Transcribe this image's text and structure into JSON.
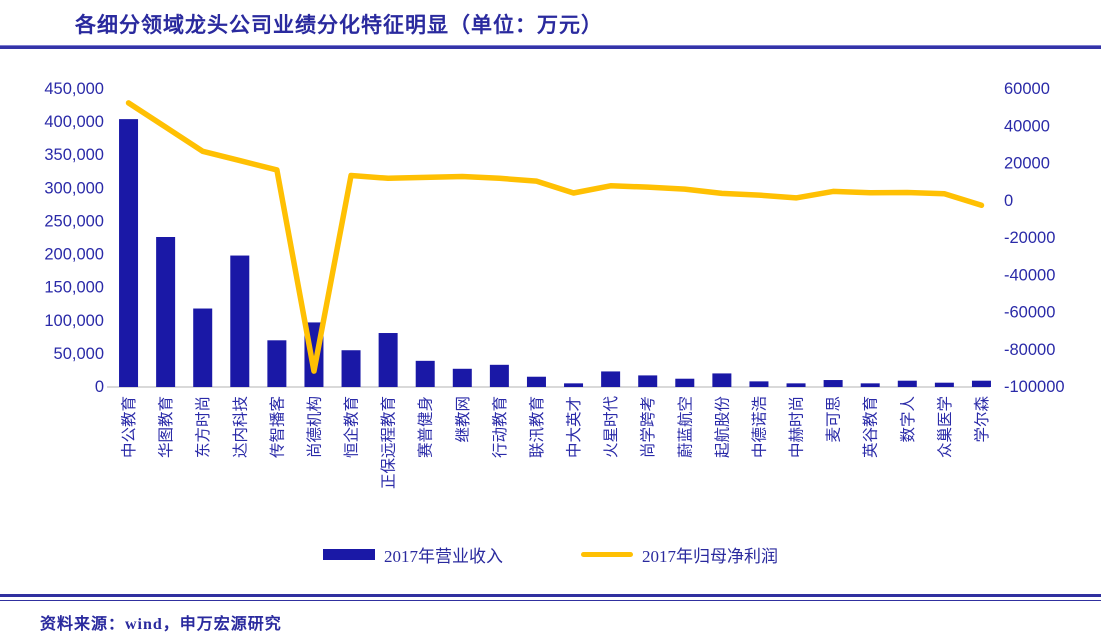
{
  "title": "各细分领域龙头公司业绩分化特征明显（单位：万元）",
  "source": "资料来源：wind，申万宏源研究",
  "legend": {
    "revenue_label": "2017年营业收入",
    "profit_label": "2017年归母净利润"
  },
  "colors": {
    "bar": "#1A18A6",
    "line": "#FFC003",
    "axis_text": "#2A2AA8",
    "baseline": "#D9D9D9",
    "rule": "#3434A8"
  },
  "chart_data": {
    "type": "bar",
    "subtype": "bar+line combo, dual axis",
    "title": "各细分领域龙头公司业绩分化特征明显（单位：万元）",
    "categories": [
      "中公教育",
      "华图教育",
      "东方时尚",
      "达内科技",
      "传智播客",
      "尚德机构",
      "恒企教育",
      "正保远程教育",
      "赛普健身",
      "继教网",
      "行动教育",
      "联汛教育",
      "中大英才",
      "火星时代",
      "尚学跨考",
      "蔚蓝航空",
      "起航股份",
      "中德诺浩",
      "中赫时尚",
      "麦可思",
      "英谷教育",
      "数字人",
      "众巢医学",
      "学尔森"
    ],
    "series": [
      {
        "name": "2017年营业收入",
        "type": "bar",
        "axis": "left",
        "color": "#1A18A6",
        "values": [
          403000,
          225000,
          117000,
          197000,
          69000,
          96000,
          54000,
          80000,
          38000,
          26000,
          32000,
          14000,
          4000,
          22000,
          16000,
          11000,
          19000,
          7000,
          4000,
          9000,
          4000,
          8000,
          5000,
          8000
        ]
      },
      {
        "name": "2017年归母净利润",
        "type": "line",
        "axis": "right",
        "color": "#FFC003",
        "values": [
          52000,
          39000,
          26000,
          21000,
          16000,
          -92000,
          13000,
          11500,
          12000,
          12500,
          11500,
          10000,
          3600,
          7500,
          6800,
          5700,
          3400,
          2500,
          1000,
          4500,
          3800,
          3900,
          3200,
          -3000
        ]
      }
    ],
    "left_axis": {
      "min": 0,
      "max": 450000,
      "step": 50000,
      "ticks": [
        450000,
        400000,
        350000,
        300000,
        250000,
        200000,
        150000,
        100000,
        50000,
        0
      ]
    },
    "right_axis": {
      "min": -100000,
      "max": 60000,
      "step": 20000,
      "ticks": [
        60000,
        40000,
        20000,
        0,
        -20000,
        -40000,
        -60000,
        -80000,
        -100000
      ]
    },
    "grid": false,
    "legend_position": "bottom",
    "x_label_rotation": -90
  }
}
